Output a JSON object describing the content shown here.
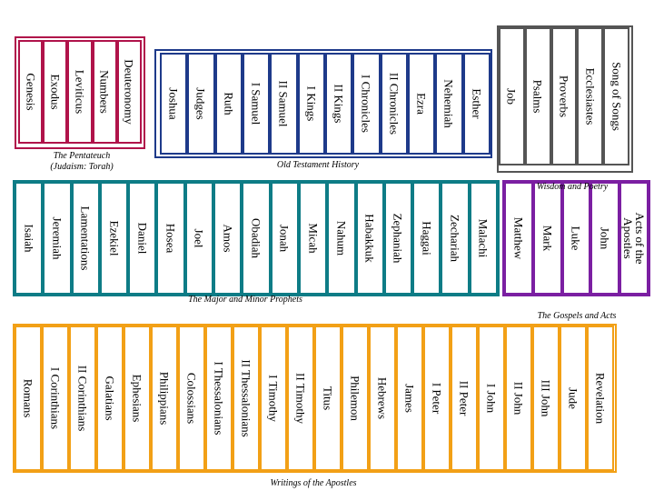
{
  "pentateuch": {
    "label": "The Pentateuch\n(Judaism: Torah)",
    "color": "#b0134a",
    "books": [
      "Deuteronomy",
      "Numbers",
      "Leviticus",
      "Exodus",
      "Genesis"
    ]
  },
  "history": {
    "label": "Old Testament History",
    "color": "#1e3a8a",
    "books": [
      "Esther",
      "Nehemiah",
      "Ezra",
      "II Chronicles",
      "I Chronicles",
      "II Kings",
      "I Kings",
      "II Samuel",
      "I Samuel",
      "Ruth",
      "Judges",
      "Joshua"
    ]
  },
  "wisdom": {
    "label": "Wisdom and Poetry",
    "color": "#555555",
    "books": [
      "Song of Songs",
      "Ecclesiastes",
      "Proverbs",
      "Psalms",
      "Job"
    ]
  },
  "prophets": {
    "label": "The Major and Minor Prophets",
    "color": "#0e7c86",
    "books": [
      "Malachi",
      "Zechariah",
      "Haggai",
      "Zephaniah",
      "Habakkuk",
      "Nahum",
      "Micah",
      "Jonah",
      "Obadiah",
      "Amos",
      "Joel",
      "Hosea",
      "Daniel",
      "Ezekiel",
      "Lamentations",
      "Jeremiah",
      "Isaiah"
    ]
  },
  "gospels": {
    "label": "The Gospels and Acts",
    "color": "#7b1fa2",
    "books": [
      "Acts of the\nApostles",
      "John",
      "Luke",
      "Mark",
      "Matthew"
    ]
  },
  "epistles": {
    "label": "Writings of the Apostles",
    "color": "#f2a016",
    "books": [
      "Revelation",
      "Jude",
      "III John",
      "II John",
      "I John",
      "II Peter",
      "I Peter",
      "James",
      "Hebrews",
      "Philemon",
      "Titus",
      "II Timothy",
      "I Timothy",
      "II Thessalonians",
      "I Thessalonians",
      "Colossians",
      "Philippians",
      "Ephesians",
      "Galatians",
      "II Corinthians",
      "I Corinthians",
      "Romans"
    ]
  }
}
